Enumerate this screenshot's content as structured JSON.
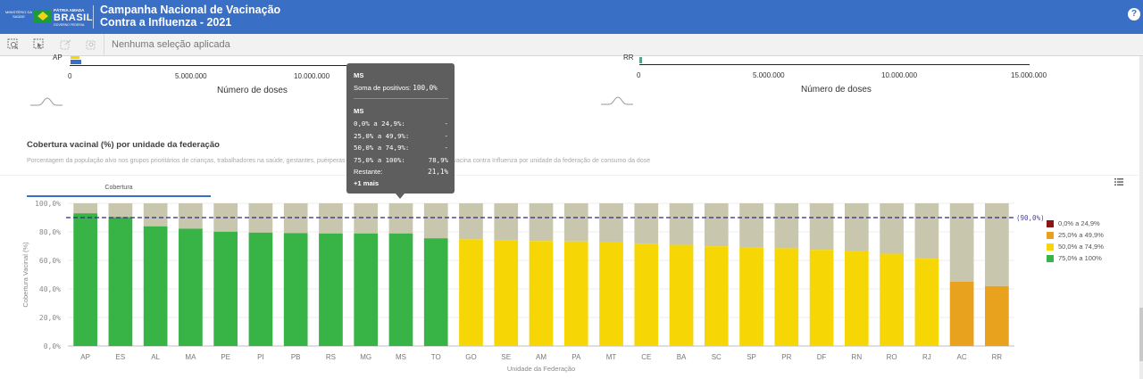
{
  "header": {
    "ministry_logo_text": "MINISTÉRIO DA SAÚDE",
    "brand_small": "PÁTRIA AMADA",
    "brand_word": "BRASIL",
    "brand_gov": "GOVERNO FEDERAL",
    "title_line1": "Campanha Nacional de Vacinação",
    "title_line2": "Contra a Influenza - 2021",
    "help_glyph": "?"
  },
  "selection_bar": {
    "text": "Nenhuma seleção aplicada",
    "tools": [
      "smart-search-icon",
      "selections-tool-icon",
      "step-back-icon",
      "step-forward-icon"
    ]
  },
  "top_chart_left": {
    "visible_category": "AP",
    "ticks": [
      "0",
      "5.000.000",
      "10.000.000"
    ],
    "xlabel": "Número de doses"
  },
  "top_chart_right": {
    "visible_category": "RR",
    "ticks": [
      "0",
      "5.000.000",
      "10.000.000",
      "15.000.000"
    ],
    "xlabel": "Número de doses"
  },
  "section": {
    "title": "Cobertura vacinal (%) por unidade da federação",
    "description": "Porcentagem da população alvo nos grupos prioritários de crianças, trabalhadores na saúde, gestantes, puérperas e idosos com doses administradas da vacina contra Influenza por unidade da federação de consumo da dose",
    "tab_label": "Cobertura"
  },
  "chart_data": {
    "type": "bar",
    "stacked": true,
    "categories": [
      "AP",
      "ES",
      "AL",
      "MA",
      "PE",
      "PI",
      "PB",
      "RS",
      "MG",
      "MS",
      "TO",
      "GO",
      "SE",
      "AM",
      "PA",
      "MT",
      "CE",
      "BA",
      "SC",
      "SP",
      "PR",
      "DF",
      "RN",
      "RO",
      "RJ",
      "AC",
      "RR"
    ],
    "values": [
      93.0,
      90.3,
      83.9,
      82.2,
      80.1,
      79.5,
      79.1,
      78.9,
      78.9,
      78.9,
      75.5,
      74.8,
      74.3,
      73.6,
      73.3,
      72.8,
      71.7,
      70.9,
      69.9,
      69.0,
      68.5,
      67.4,
      66.6,
      64.7,
      61.2,
      45.0,
      42.0
    ],
    "remainder_label": "Restante",
    "xlabel": "Unidade da Federação",
    "ylabel": "Cobertura Vacinal (%)",
    "ylim": [
      0,
      100
    ],
    "yticks": [
      "0,0%",
      "20,0%",
      "40,0%",
      "60,0%",
      "80,0%",
      "100,0%"
    ],
    "reference_line": {
      "value": 90,
      "label": "(90,0%)"
    },
    "remainder_color": "#c9c6ae",
    "ranges": [
      {
        "label": "0,0% a 24,9%",
        "min": 0,
        "max": 24.9,
        "color": "#8b1414"
      },
      {
        "label": "25,0% a 49,9%",
        "min": 25,
        "max": 49.9,
        "color": "#e8a21d"
      },
      {
        "label": "50,0% a 74,9%",
        "min": 50,
        "max": 74.9,
        "color": "#f6d705"
      },
      {
        "label": "75,0% a 100%",
        "min": 75,
        "max": 100,
        "color": "#38b447"
      }
    ],
    "legend_position": "right",
    "grid": true
  },
  "tooltip": {
    "title": "MS",
    "sum_label": "Soma de positivos:",
    "sum_value": "100,0%",
    "group_title": "MS",
    "rows": [
      {
        "label": "0,0% a 24,9%:",
        "value": "-"
      },
      {
        "label": "25,0% a 49,9%:",
        "value": "-"
      },
      {
        "label": "50,0% a 74,9%:",
        "value": "-"
      },
      {
        "label": "75,0% a 100%:",
        "value": "78,9%"
      },
      {
        "label": "Restante:",
        "value": "21,1%"
      }
    ],
    "more": "+1 mais"
  }
}
